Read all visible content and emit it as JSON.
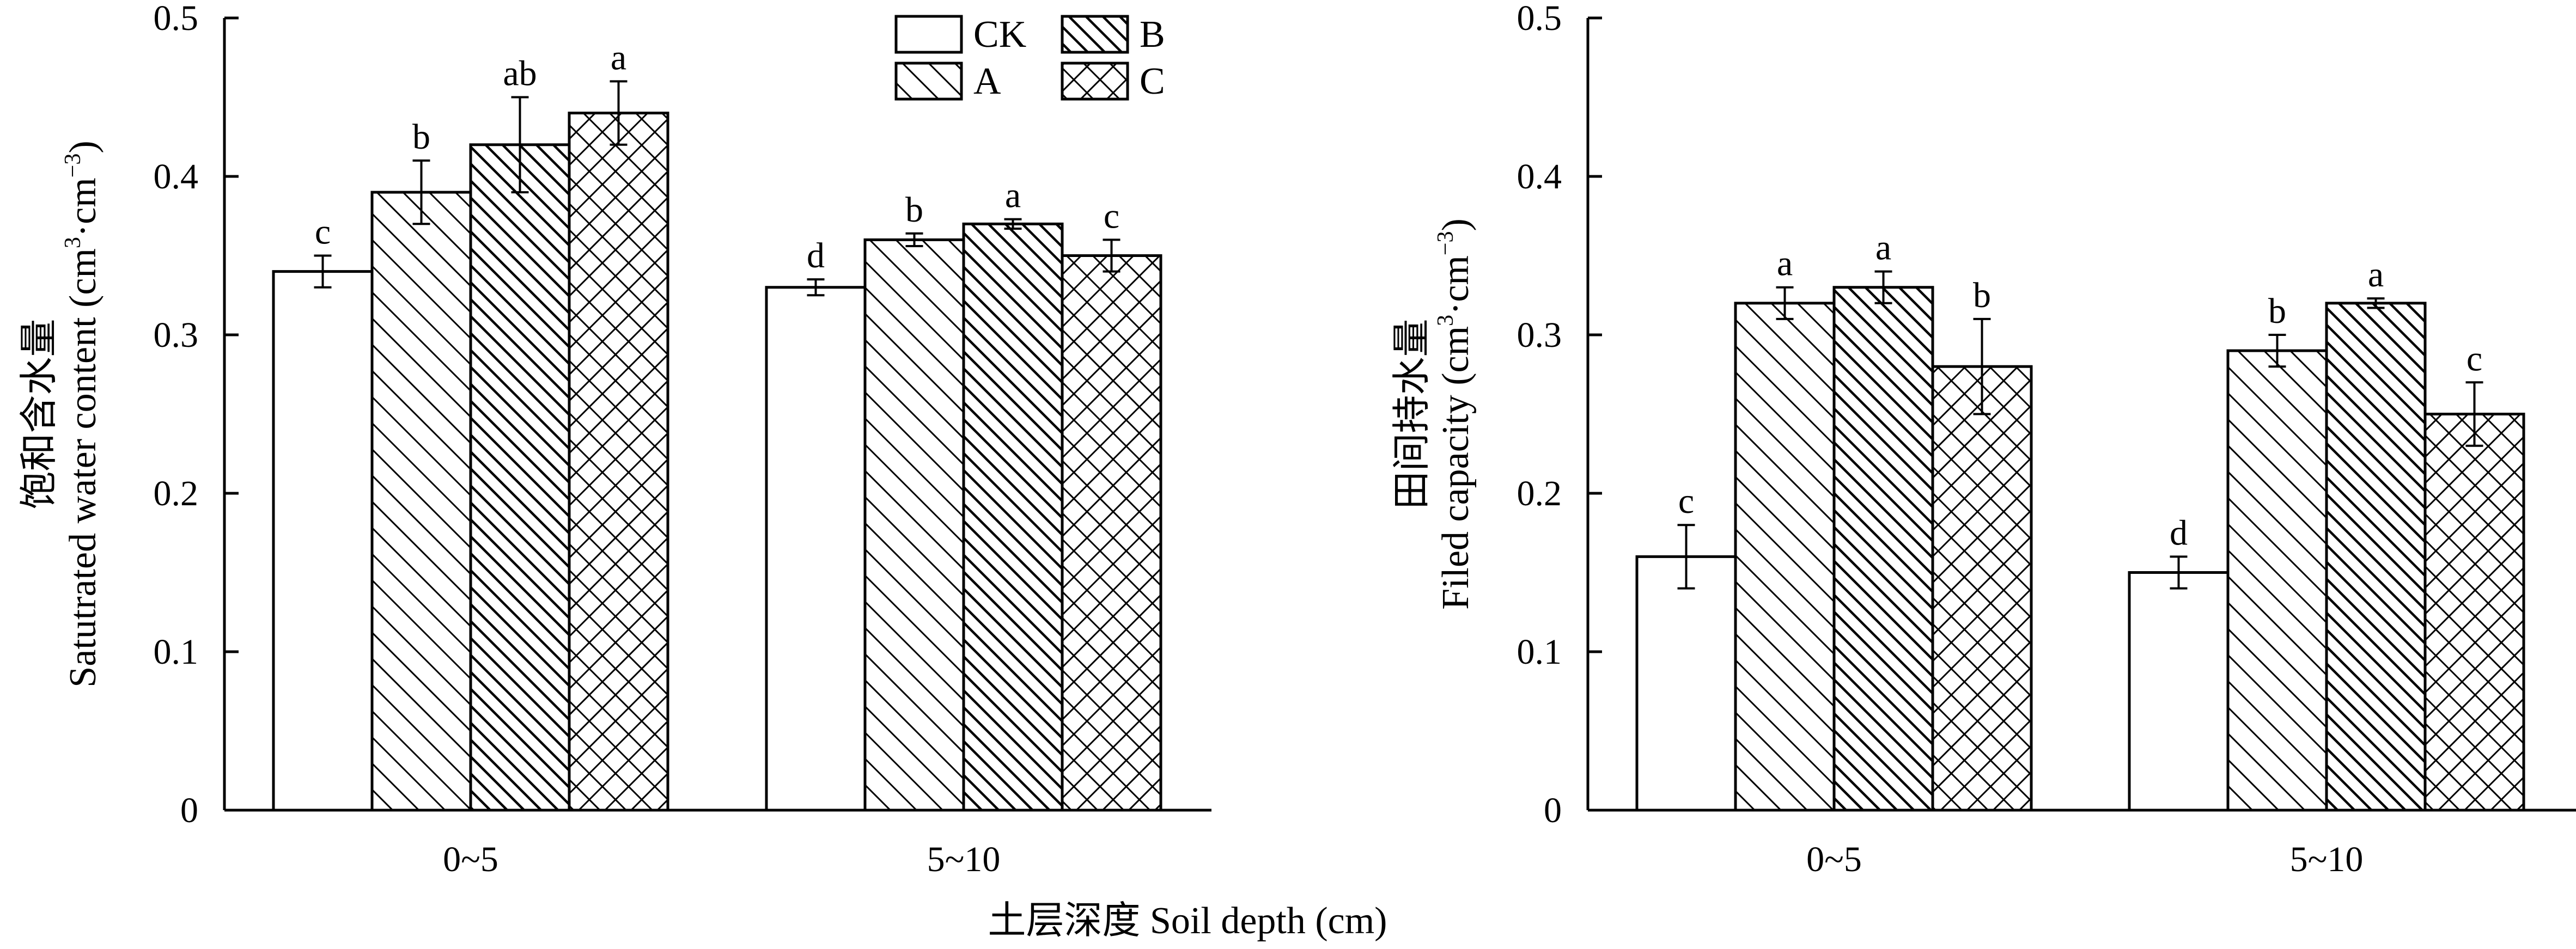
{
  "chart_data": [
    {
      "type": "bar",
      "ylabel_cn": "饱和含水量",
      "ylabel_en": "Satutrated water content (cm",
      "ylabel_mid": "·cm",
      "ylabel_end": ")",
      "ylabel_sup1": "3",
      "ylabel_sup2": "−3",
      "ylim": [
        0,
        0.5
      ],
      "yticks": [
        "0",
        "0.1",
        "0.2",
        "0.3",
        "0.4",
        "0.5"
      ],
      "categories": [
        "0~5",
        "5~10"
      ],
      "series": [
        {
          "name": "CK",
          "values": [
            0.34,
            0.33
          ],
          "errors": [
            0.01,
            0.005
          ],
          "labels": [
            "c",
            "d"
          ]
        },
        {
          "name": "A",
          "values": [
            0.39,
            0.36
          ],
          "errors": [
            0.02,
            0.004
          ],
          "labels": [
            "b",
            "b"
          ]
        },
        {
          "name": "B",
          "values": [
            0.42,
            0.37
          ],
          "errors": [
            0.03,
            0.003
          ],
          "labels": [
            "ab",
            "a"
          ]
        },
        {
          "name": "C",
          "values": [
            0.44,
            0.35
          ],
          "errors": [
            0.02,
            0.01
          ],
          "labels": [
            "a",
            "c"
          ]
        }
      ]
    },
    {
      "type": "bar",
      "ylabel_cn": "田间持水量",
      "ylabel_en": "Filed capacity (cm",
      "ylabel_mid": "·cm",
      "ylabel_end": ")",
      "ylabel_sup1": "3",
      "ylabel_sup2": "−3",
      "ylim": [
        0,
        0.5
      ],
      "yticks": [
        "0",
        "0.1",
        "0.2",
        "0.3",
        "0.4",
        "0.5"
      ],
      "categories": [
        "0~5",
        "5~10"
      ],
      "series": [
        {
          "name": "CK",
          "values": [
            0.16,
            0.15
          ],
          "errors": [
            0.02,
            0.01
          ],
          "labels": [
            "c",
            "d"
          ]
        },
        {
          "name": "A",
          "values": [
            0.32,
            0.29
          ],
          "errors": [
            0.01,
            0.01
          ],
          "labels": [
            "a",
            "b"
          ]
        },
        {
          "name": "B",
          "values": [
            0.33,
            0.32
          ],
          "errors": [
            0.01,
            0.003
          ],
          "labels": [
            "a",
            "a"
          ]
        },
        {
          "name": "C",
          "values": [
            0.28,
            0.25
          ],
          "errors": [
            0.03,
            0.02
          ],
          "labels": [
            "b",
            "c"
          ]
        }
      ]
    }
  ],
  "xlabel": "土层深度 Soil depth (cm)",
  "legend": {
    "placement": "top-right of left panel",
    "items": [
      "CK",
      "B",
      "A",
      "C"
    ]
  }
}
